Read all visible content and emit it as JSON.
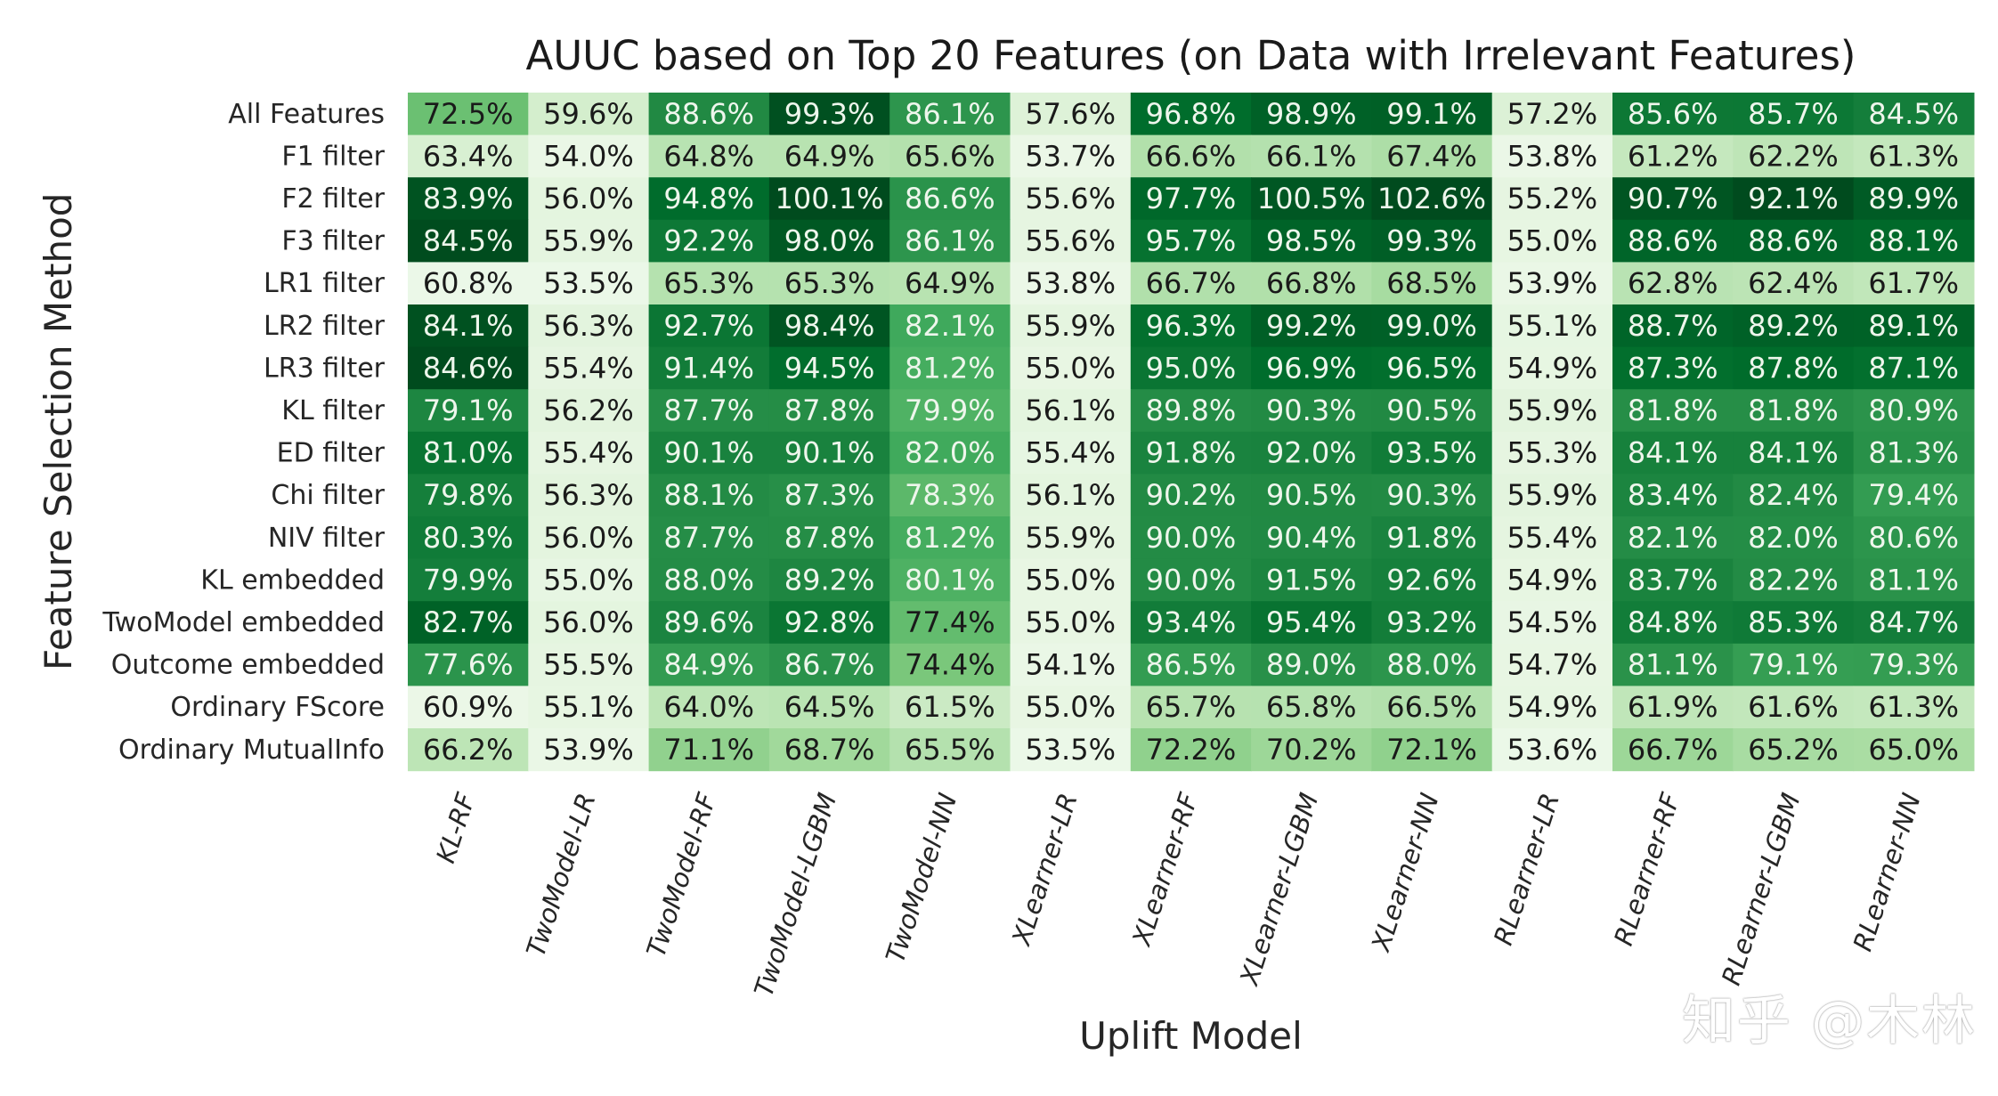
{
  "chart_data": {
    "type": "heatmap",
    "title": "AUUC based on Top 20 Features (on Data with Irrelevant Features)",
    "xlabel": "Uplift Model",
    "ylabel": "Feature Selection Method",
    "columns": [
      "KL-RF",
      "TwoModel-LR",
      "TwoModel-RF",
      "TwoModel-LGBM",
      "TwoModel-NN",
      "XLearner-LR",
      "XLearner-RF",
      "XLearner-LGBM",
      "XLearner-NN",
      "RLearner-LR",
      "RLearner-RF",
      "RLearner-LGBM",
      "RLearner-NN"
    ],
    "rows": [
      "All Features",
      "F1 filter",
      "F2 filter",
      "F3 filter",
      "LR1 filter",
      "LR2 filter",
      "LR3 filter",
      "KL filter",
      "ED filter",
      "Chi filter",
      "NIV filter",
      "KL embedded",
      "TwoModel embedded",
      "Outcome embedded",
      "Ordinary FScore",
      "Ordinary MutualInfo"
    ],
    "value_format": "percent, 1 decimal",
    "colormap": "Greens",
    "color_low": "#f7fcf5",
    "color_high": "#00441b",
    "column_groups": [
      [
        0
      ],
      [
        1,
        2,
        3,
        4
      ],
      [
        5,
        6,
        7,
        8
      ],
      [
        9,
        10,
        11,
        12
      ]
    ],
    "values": [
      [
        72.5,
        59.6,
        88.6,
        99.3,
        86.1,
        57.6,
        96.8,
        98.9,
        99.1,
        57.2,
        85.6,
        85.7,
        84.5
      ],
      [
        63.4,
        54.0,
        64.8,
        64.9,
        65.6,
        53.7,
        66.6,
        66.1,
        67.4,
        53.8,
        61.2,
        62.2,
        61.3
      ],
      [
        83.9,
        56.0,
        94.8,
        100.1,
        86.6,
        55.6,
        97.7,
        100.5,
        102.6,
        55.2,
        90.7,
        92.1,
        89.9
      ],
      [
        84.5,
        55.9,
        92.2,
        98.0,
        86.1,
        55.6,
        95.7,
        98.5,
        99.3,
        55.0,
        88.6,
        88.6,
        88.1
      ],
      [
        60.8,
        53.5,
        65.3,
        65.3,
        64.9,
        53.8,
        66.7,
        66.8,
        68.5,
        53.9,
        62.8,
        62.4,
        61.7
      ],
      [
        84.1,
        56.3,
        92.7,
        98.4,
        82.1,
        55.9,
        96.3,
        99.2,
        99.0,
        55.1,
        88.7,
        89.2,
        89.1
      ],
      [
        84.6,
        55.4,
        91.4,
        94.5,
        81.2,
        55.0,
        95.0,
        96.9,
        96.5,
        54.9,
        87.3,
        87.8,
        87.1
      ],
      [
        79.1,
        56.2,
        87.7,
        87.8,
        79.9,
        56.1,
        89.8,
        90.3,
        90.5,
        55.9,
        81.8,
        81.8,
        80.9
      ],
      [
        81.0,
        55.4,
        90.1,
        90.1,
        82.0,
        55.4,
        91.8,
        92.0,
        93.5,
        55.3,
        84.1,
        84.1,
        81.3
      ],
      [
        79.8,
        56.3,
        88.1,
        87.3,
        78.3,
        56.1,
        90.2,
        90.5,
        90.3,
        55.9,
        83.4,
        82.4,
        79.4
      ],
      [
        80.3,
        56.0,
        87.7,
        87.8,
        81.2,
        55.9,
        90.0,
        90.4,
        91.8,
        55.4,
        82.1,
        82.0,
        80.6
      ],
      [
        79.9,
        55.0,
        88.0,
        89.2,
        80.1,
        55.0,
        90.0,
        91.5,
        92.6,
        54.9,
        83.7,
        82.2,
        81.1
      ],
      [
        82.7,
        56.0,
        89.6,
        92.8,
        77.4,
        55.0,
        93.4,
        95.4,
        93.2,
        54.5,
        84.8,
        85.3,
        84.7
      ],
      [
        77.6,
        55.5,
        84.9,
        86.7,
        74.4,
        54.1,
        86.5,
        89.0,
        88.0,
        54.7,
        81.1,
        79.1,
        79.3
      ],
      [
        60.9,
        55.1,
        64.0,
        64.5,
        61.5,
        55.0,
        65.7,
        65.8,
        66.5,
        54.9,
        61.9,
        61.6,
        61.3
      ],
      [
        66.2,
        53.9,
        71.1,
        68.7,
        65.5,
        53.5,
        72.2,
        70.2,
        72.1,
        53.6,
        66.7,
        65.2,
        65.0
      ]
    ]
  },
  "watermark": "知乎 @木林"
}
